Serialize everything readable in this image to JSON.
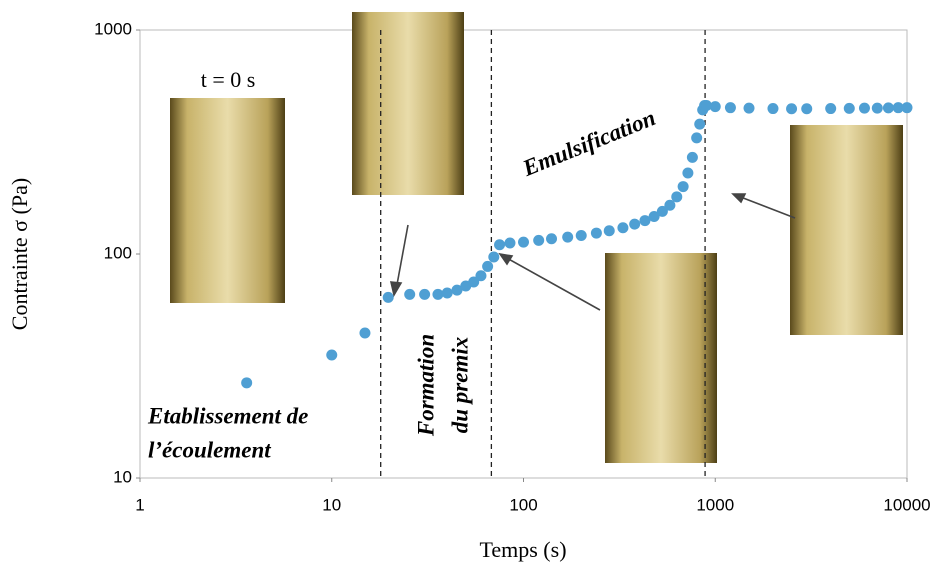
{
  "chart_data": {
    "type": "scatter",
    "log_x": true,
    "log_y": true,
    "xlabel": "Temps (s)",
    "ylabel": "Contrainte σ (Pa)",
    "xlim": [
      1,
      10000
    ],
    "ylim": [
      10,
      1000
    ],
    "xticks": [
      1,
      10,
      100,
      1000,
      10000
    ],
    "yticks": [
      10,
      100,
      1000
    ],
    "color": "#4f9fd3",
    "x": [
      3.6,
      10,
      14.9,
      19.7,
      25.5,
      30.5,
      35.8,
      40,
      45,
      50,
      55,
      60,
      65,
      70,
      75,
      85,
      100,
      120,
      140,
      170,
      200,
      240,
      280,
      330,
      380,
      430,
      480,
      530,
      580,
      630,
      680,
      720,
      760,
      800,
      830,
      860,
      880,
      900,
      1000,
      1200,
      1500,
      2000,
      2500,
      3000,
      4000,
      5000,
      6000,
      7000,
      8000,
      9000,
      10000
    ],
    "values": [
      26.6,
      35.4,
      44.4,
      64,
      66,
      66,
      66,
      67,
      69,
      72,
      75,
      80,
      88,
      97,
      110,
      112,
      113,
      115,
      117,
      119,
      121,
      124,
      127,
      131,
      136,
      141,
      147,
      155,
      165,
      180,
      200,
      230,
      270,
      330,
      380,
      440,
      460,
      460,
      455,
      450,
      448,
      446,
      445,
      445,
      446,
      447,
      448,
      448,
      449,
      450,
      450
    ],
    "phase_boundaries": [
      18,
      68,
      885
    ],
    "annotations": [
      "t = 0 s",
      "Etablissement de",
      "l’écoulement",
      "Formation",
      "du premix",
      "Emulsification"
    ]
  }
}
